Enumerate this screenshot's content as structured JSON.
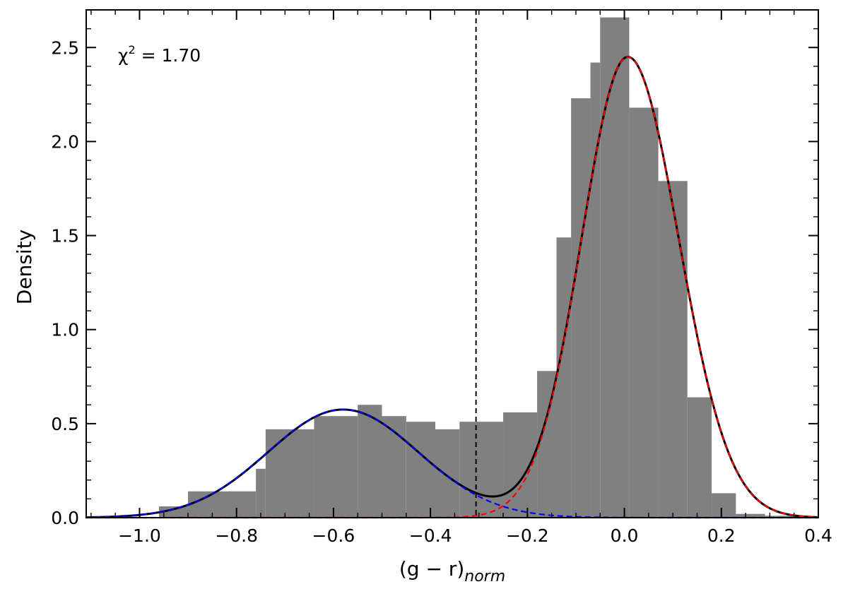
{
  "chart_data": {
    "type": "bar",
    "xlabel": {
      "base": "(g − r)",
      "sub": "norm"
    },
    "ylabel": "Density",
    "xlim": [
      -1.11,
      0.4
    ],
    "ylim": [
      0,
      2.7
    ],
    "xticks": [
      {
        "value": -1.0,
        "label": "−1.0"
      },
      {
        "value": -0.8,
        "label": "−0.8"
      },
      {
        "value": -0.6,
        "label": "−0.6"
      },
      {
        "value": -0.4,
        "label": "−0.4"
      },
      {
        "value": -0.2,
        "label": "−0.2"
      },
      {
        "value": 0.0,
        "label": "0.0"
      },
      {
        "value": 0.2,
        "label": "0.2"
      },
      {
        "value": 0.4,
        "label": "0.4"
      }
    ],
    "yticks": [
      {
        "value": 0.0,
        "label": "0.0"
      },
      {
        "value": 0.5,
        "label": "0.5"
      },
      {
        "value": 1.0,
        "label": "1.0"
      },
      {
        "value": 1.5,
        "label": "1.5"
      },
      {
        "value": 2.0,
        "label": "2.0"
      },
      {
        "value": 2.5,
        "label": "2.5"
      }
    ],
    "annotation": {
      "prefix": "χ",
      "sup": "2",
      "suffix": " = 1.70"
    },
    "threshold_x": -0.306,
    "histogram": {
      "color": "#808080",
      "bin_edges": [
        -0.96,
        -0.9,
        -0.76,
        -0.74,
        -0.64,
        -0.55,
        -0.5,
        -0.45,
        -0.39,
        -0.34,
        -0.25,
        -0.18,
        -0.14,
        -0.11,
        -0.07,
        -0.05,
        0.01,
        0.07,
        0.13,
        0.18,
        0.23,
        0.29,
        0.36
      ],
      "values": [
        0.06,
        0.14,
        0.26,
        0.47,
        0.54,
        0.6,
        0.54,
        0.51,
        0.47,
        0.51,
        0.56,
        0.78,
        1.49,
        2.23,
        2.42,
        2.66,
        2.18,
        1.79,
        0.64,
        0.13,
        0.02,
        0.01
      ]
    },
    "components": [
      {
        "kind": "gaussian",
        "mean": -0.58,
        "sigma": 0.155,
        "amplitude": 0.575,
        "color": "#0000ff",
        "style": "dashed"
      },
      {
        "kind": "skewed-gaussian",
        "mean": 0.007,
        "sigma_left": 0.095,
        "sigma_right": 0.105,
        "amplitude": 2.45,
        "color": "#ff0000",
        "style": "dashed"
      }
    ],
    "total_curve": {
      "color": "#000000",
      "style": "solid"
    }
  }
}
